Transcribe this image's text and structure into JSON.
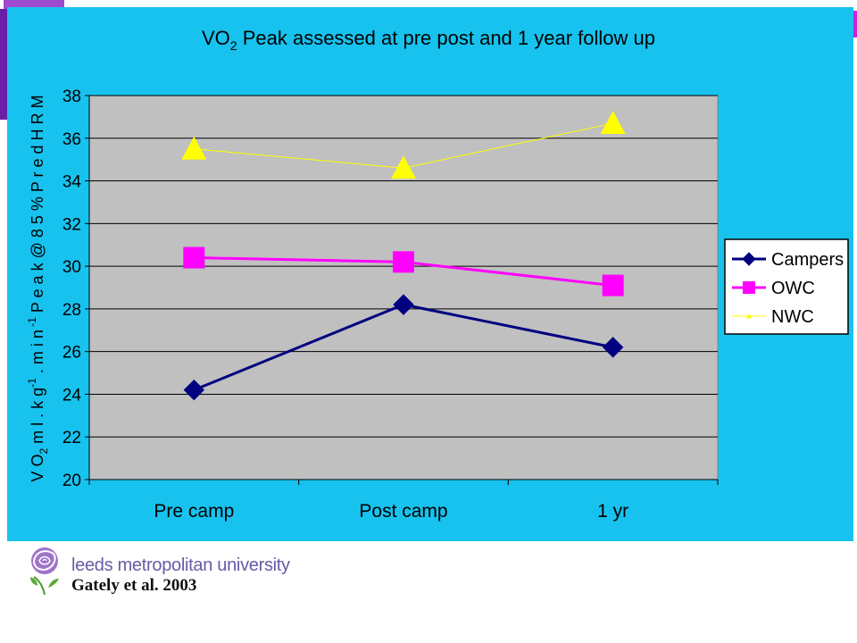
{
  "colors": {
    "panel": "#17c2ee",
    "plot_area": "#c0c0c0",
    "campers": "#000080",
    "owc": "#ff00ff",
    "nwc": "#ffff00",
    "accent": "#9e4bd1"
  },
  "footer": {
    "university": "leeds metropolitan university",
    "citation": "Gately et al. 2003",
    "logo_icon": "rose-logo-icon"
  },
  "chart_data": {
    "type": "line",
    "title_main": "VO",
    "title_sub": "2",
    "title_rest": " Peak assessed at pre post and 1 year follow up",
    "ylabel": "VO2 ml.kg-1.min-1 Peak @ 85% Pred HRM",
    "ylabel_parts": [
      "V O",
      "2",
      " m l . k g",
      "-1",
      " . m i n",
      " -1",
      "  P e a k  @  8 5 %  P r e d  H R M"
    ],
    "categories": [
      "Pre camp",
      "Post camp",
      "1 yr"
    ],
    "ylim": [
      20,
      38
    ],
    "yticks": [
      "20",
      "22",
      "24",
      "26",
      "28",
      "30",
      "32",
      "34",
      "36",
      "38"
    ],
    "grid": true,
    "legend": "right",
    "series": [
      {
        "name": "Campers",
        "values": [
          24.2,
          28.2,
          26.2
        ]
      },
      {
        "name": "OWC",
        "values": [
          30.4,
          30.2,
          29.1
        ]
      },
      {
        "name": "NWC",
        "values": [
          35.5,
          34.6,
          36.7
        ]
      }
    ]
  }
}
